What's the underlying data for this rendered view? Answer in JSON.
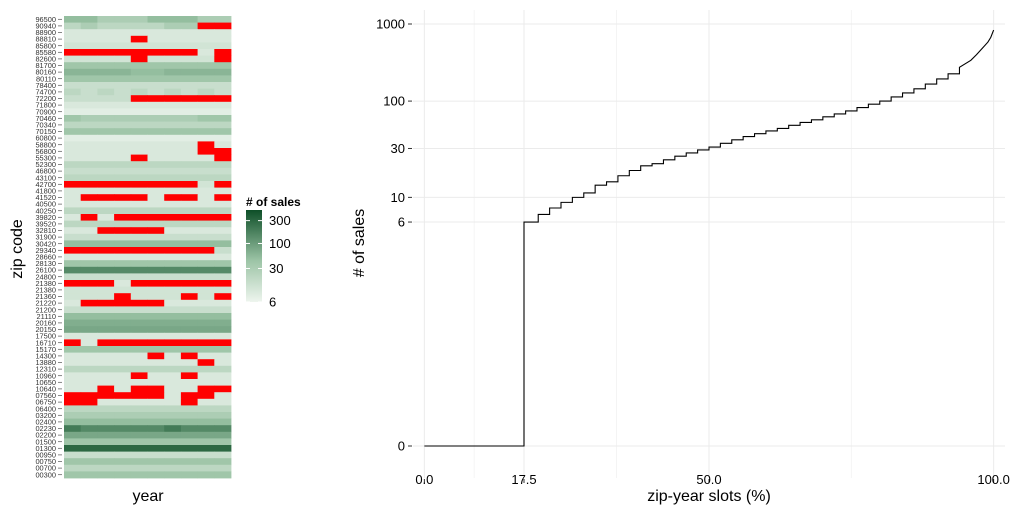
{
  "chart_data": [
    {
      "type": "heatmap",
      "xlabel": "year",
      "ylabel": "zip code",
      "columns": 10,
      "rows": [
        {
          "zip": "96500",
          "cells": [
            50,
            50,
            30,
            30,
            30,
            50,
            50,
            50,
            30,
            30
          ]
        },
        {
          "zip": "90940",
          "cells": [
            20,
            30,
            20,
            20,
            20,
            20,
            30,
            30,
            -1,
            -1
          ]
        },
        {
          "zip": "88900",
          "cells": [
            10,
            10,
            10,
            10,
            10,
            10,
            10,
            10,
            10,
            10
          ]
        },
        {
          "zip": "88810",
          "cells": [
            10,
            10,
            10,
            10,
            -1,
            10,
            10,
            10,
            10,
            10
          ]
        },
        {
          "zip": "85800",
          "cells": [
            12,
            12,
            12,
            12,
            12,
            12,
            12,
            12,
            12,
            12
          ]
        },
        {
          "zip": "85580",
          "cells": [
            -1,
            -1,
            -1,
            -1,
            -1,
            -1,
            -1,
            -1,
            10,
            -1
          ]
        },
        {
          "zip": "82600",
          "cells": [
            12,
            12,
            12,
            12,
            -1,
            12,
            12,
            12,
            12,
            -1
          ]
        },
        {
          "zip": "81700",
          "cells": [
            40,
            40,
            40,
            40,
            40,
            40,
            40,
            40,
            40,
            40
          ]
        },
        {
          "zip": "80160",
          "cells": [
            60,
            60,
            60,
            60,
            50,
            50,
            60,
            60,
            60,
            60
          ]
        },
        {
          "zip": "80110",
          "cells": [
            40,
            40,
            40,
            40,
            40,
            40,
            40,
            40,
            40,
            40
          ]
        },
        {
          "zip": "78400",
          "cells": [
            15,
            15,
            15,
            15,
            15,
            15,
            15,
            15,
            15,
            15
          ]
        },
        {
          "zip": "74700",
          "cells": [
            20,
            15,
            20,
            15,
            20,
            15,
            20,
            15,
            20,
            15
          ]
        },
        {
          "zip": "72200",
          "cells": [
            15,
            15,
            15,
            15,
            -1,
            -1,
            -1,
            -1,
            -1,
            -1
          ]
        },
        {
          "zip": "71800",
          "cells": [
            10,
            10,
            10,
            10,
            10,
            10,
            10,
            10,
            10,
            10
          ]
        },
        {
          "zip": "70900",
          "cells": [
            8,
            8,
            8,
            8,
            8,
            8,
            8,
            8,
            8,
            8
          ]
        },
        {
          "zip": "70460",
          "cells": [
            40,
            30,
            30,
            30,
            30,
            30,
            30,
            30,
            40,
            40
          ]
        },
        {
          "zip": "70340",
          "cells": [
            20,
            20,
            20,
            20,
            20,
            20,
            20,
            20,
            20,
            20
          ]
        },
        {
          "zip": "70150",
          "cells": [
            40,
            40,
            40,
            40,
            40,
            40,
            40,
            40,
            40,
            40
          ]
        },
        {
          "zip": "60800",
          "cells": [
            8,
            8,
            8,
            8,
            8,
            8,
            8,
            8,
            8,
            8
          ]
        },
        {
          "zip": "58800",
          "cells": [
            10,
            10,
            10,
            10,
            10,
            10,
            10,
            10,
            -1,
            10
          ]
        },
        {
          "zip": "56800",
          "cells": [
            10,
            10,
            10,
            10,
            10,
            10,
            10,
            10,
            -1,
            -1
          ]
        },
        {
          "zip": "55300",
          "cells": [
            10,
            10,
            10,
            10,
            -1,
            10,
            10,
            10,
            10,
            -1
          ]
        },
        {
          "zip": "52300",
          "cells": [
            20,
            20,
            20,
            20,
            20,
            20,
            20,
            20,
            20,
            20
          ]
        },
        {
          "zip": "46800",
          "cells": [
            15,
            15,
            15,
            15,
            15,
            15,
            15,
            15,
            15,
            15
          ]
        },
        {
          "zip": "43100",
          "cells": [
            20,
            20,
            20,
            20,
            20,
            20,
            20,
            20,
            20,
            20
          ]
        },
        {
          "zip": "42700",
          "cells": [
            -1,
            -1,
            -1,
            -1,
            -1,
            -1,
            -1,
            -1,
            12,
            -1
          ]
        },
        {
          "zip": "41800",
          "cells": [
            10,
            10,
            10,
            10,
            10,
            10,
            10,
            10,
            10,
            10
          ]
        },
        {
          "zip": "41520",
          "cells": [
            10,
            -1,
            -1,
            -1,
            -1,
            10,
            -1,
            -1,
            10,
            -1
          ]
        },
        {
          "zip": "40500",
          "cells": [
            10,
            10,
            10,
            10,
            10,
            10,
            10,
            10,
            10,
            10
          ]
        },
        {
          "zip": "40250",
          "cells": [
            20,
            20,
            20,
            20,
            20,
            20,
            20,
            20,
            20,
            20
          ]
        },
        {
          "zip": "39820",
          "cells": [
            10,
            -1,
            10,
            -1,
            -1,
            -1,
            -1,
            -1,
            -1,
            -1
          ]
        },
        {
          "zip": "39520",
          "cells": [
            20,
            20,
            20,
            20,
            20,
            20,
            20,
            20,
            20,
            20
          ]
        },
        {
          "zip": "32810",
          "cells": [
            10,
            10,
            -1,
            -1,
            -1,
            -1,
            10,
            10,
            10,
            10
          ]
        },
        {
          "zip": "31900",
          "cells": [
            15,
            15,
            15,
            15,
            15,
            15,
            15,
            15,
            15,
            15
          ]
        },
        {
          "zip": "30420",
          "cells": [
            50,
            50,
            50,
            50,
            50,
            50,
            50,
            50,
            50,
            50
          ]
        },
        {
          "zip": "29340",
          "cells": [
            -1,
            -1,
            -1,
            -1,
            -1,
            -1,
            -1,
            -1,
            -1,
            15
          ]
        },
        {
          "zip": "28660",
          "cells": [
            10,
            10,
            10,
            10,
            10,
            10,
            10,
            10,
            10,
            10
          ]
        },
        {
          "zip": "28130",
          "cells": [
            40,
            40,
            40,
            40,
            40,
            40,
            40,
            40,
            40,
            40
          ]
        },
        {
          "zip": "26100",
          "cells": [
            150,
            150,
            150,
            150,
            150,
            150,
            150,
            150,
            150,
            150
          ]
        },
        {
          "zip": "24800",
          "cells": [
            15,
            15,
            15,
            15,
            15,
            15,
            15,
            15,
            15,
            15
          ]
        },
        {
          "zip": "21380",
          "cells": [
            -1,
            -1,
            -1,
            10,
            -1,
            -1,
            -1,
            -1,
            -1,
            -1
          ]
        },
        {
          "zip": "21380",
          "cells": [
            12,
            12,
            12,
            12,
            12,
            12,
            12,
            12,
            12,
            12
          ]
        },
        {
          "zip": "21360",
          "cells": [
            12,
            12,
            12,
            -1,
            12,
            12,
            12,
            -1,
            12,
            -1
          ]
        },
        {
          "zip": "21220",
          "cells": [
            10,
            -1,
            -1,
            -1,
            -1,
            -1,
            10,
            10,
            10,
            10
          ]
        },
        {
          "zip": "21200",
          "cells": [
            15,
            15,
            15,
            15,
            15,
            15,
            15,
            15,
            15,
            15
          ]
        },
        {
          "zip": "21110",
          "cells": [
            50,
            50,
            50,
            50,
            50,
            50,
            50,
            50,
            50,
            50
          ]
        },
        {
          "zip": "20160",
          "cells": [
            70,
            70,
            70,
            70,
            70,
            70,
            70,
            70,
            70,
            70
          ]
        },
        {
          "zip": "20150",
          "cells": [
            80,
            80,
            80,
            80,
            80,
            80,
            80,
            80,
            80,
            80
          ]
        },
        {
          "zip": "17500",
          "cells": [
            10,
            10,
            10,
            10,
            10,
            10,
            10,
            10,
            10,
            10
          ]
        },
        {
          "zip": "16710",
          "cells": [
            -1,
            10,
            -1,
            -1,
            -1,
            -1,
            -1,
            -1,
            -1,
            -1
          ]
        },
        {
          "zip": "15170",
          "cells": [
            40,
            40,
            40,
            40,
            40,
            40,
            40,
            40,
            40,
            40
          ]
        },
        {
          "zip": "14300",
          "cells": [
            10,
            10,
            10,
            10,
            10,
            -1,
            10,
            -1,
            10,
            10
          ]
        },
        {
          "zip": "13880",
          "cells": [
            10,
            10,
            10,
            10,
            10,
            10,
            10,
            10,
            -1,
            10
          ]
        },
        {
          "zip": "12310",
          "cells": [
            20,
            20,
            20,
            20,
            20,
            20,
            20,
            20,
            20,
            20
          ]
        },
        {
          "zip": "10960",
          "cells": [
            10,
            10,
            10,
            10,
            -1,
            10,
            10,
            -1,
            10,
            10
          ]
        },
        {
          "zip": "10650",
          "cells": [
            10,
            10,
            10,
            10,
            10,
            10,
            10,
            10,
            10,
            10
          ]
        },
        {
          "zip": "10640",
          "cells": [
            10,
            10,
            -1,
            10,
            -1,
            -1,
            10,
            10,
            -1,
            -1
          ]
        },
        {
          "zip": "07560",
          "cells": [
            -1,
            -1,
            -1,
            -1,
            -1,
            -1,
            10,
            -1,
            -1,
            10
          ]
        },
        {
          "zip": "06750",
          "cells": [
            -1,
            -1,
            10,
            10,
            10,
            10,
            10,
            -1,
            10,
            10
          ]
        },
        {
          "zip": "06400",
          "cells": [
            20,
            20,
            20,
            20,
            20,
            20,
            20,
            20,
            20,
            20
          ]
        },
        {
          "zip": "03200",
          "cells": [
            30,
            30,
            30,
            30,
            30,
            30,
            30,
            30,
            30,
            30
          ]
        },
        {
          "zip": "02400",
          "cells": [
            50,
            50,
            50,
            50,
            50,
            50,
            50,
            50,
            50,
            50
          ]
        },
        {
          "zip": "02230",
          "cells": [
            200,
            150,
            150,
            150,
            150,
            150,
            200,
            150,
            150,
            150
          ]
        },
        {
          "zip": "02200",
          "cells": [
            80,
            80,
            80,
            80,
            80,
            80,
            80,
            80,
            80,
            80
          ]
        },
        {
          "zip": "01500",
          "cells": [
            40,
            40,
            40,
            40,
            40,
            40,
            40,
            40,
            40,
            40
          ]
        },
        {
          "zip": "01300",
          "cells": [
            300,
            300,
            300,
            300,
            300,
            300,
            300,
            300,
            300,
            300
          ]
        },
        {
          "zip": "00950",
          "cells": [
            15,
            15,
            15,
            15,
            15,
            15,
            15,
            15,
            15,
            15
          ]
        },
        {
          "zip": "00750",
          "cells": [
            40,
            40,
            40,
            40,
            40,
            40,
            40,
            40,
            40,
            40
          ]
        },
        {
          "zip": "00700",
          "cells": [
            20,
            20,
            20,
            20,
            20,
            20,
            20,
            20,
            20,
            20
          ]
        },
        {
          "zip": "00300",
          "cells": [
            40,
            40,
            40,
            40,
            40,
            40,
            40,
            40,
            40,
            40
          ]
        }
      ],
      "legend": {
        "title": "# of sales",
        "ticks": [
          "300",
          "100",
          "30",
          "6"
        ],
        "tick_values": [
          300,
          100,
          30,
          6
        ],
        "range": [
          6,
          500
        ],
        "low_color": "#eef5ee",
        "high_color": "#0e4f28",
        "missing_color": "#ff0000"
      }
    },
    {
      "type": "line",
      "xlabel": "zip-year slots (%)",
      "ylabel": "# of sales",
      "x_ticks": [
        "0.0",
        "17.5",
        "50.0",
        "100.0"
      ],
      "x_tick_values": [
        0,
        17.5,
        50,
        100
      ],
      "x_minor": [
        8.75,
        33.75,
        75
      ],
      "y_ticks": [
        "0",
        "6",
        "10",
        "30",
        "100",
        "1000"
      ],
      "y_tick_values": [
        0,
        6,
        10,
        30,
        100,
        1000
      ],
      "xlim": [
        -2,
        102
      ],
      "y_scale": "sqrt-of-log-like",
      "grid": true,
      "line_color": "#000000",
      "series": [
        {
          "x": [
            0,
            17.5,
            17.5,
            20,
            22,
            24,
            26,
            28,
            30,
            32,
            34,
            36,
            38,
            40,
            42,
            44,
            46,
            48,
            50,
            52,
            54,
            56,
            58,
            60,
            62,
            64,
            66,
            68,
            70,
            72,
            74,
            76,
            78,
            80,
            82,
            84,
            86,
            88,
            90,
            92,
            94,
            96,
            97,
            98,
            99,
            99.5,
            100
          ],
          "y": [
            0,
            0,
            6,
            7,
            8,
            9,
            10,
            11,
            13,
            14,
            16,
            18,
            20,
            21,
            23,
            25,
            27,
            29,
            31,
            34,
            37,
            40,
            43,
            46,
            49,
            53,
            57,
            61,
            66,
            71,
            77,
            84,
            92,
            100,
            112,
            125,
            140,
            160,
            185,
            215,
            260,
            320,
            380,
            460,
            560,
            650,
            820
          ]
        }
      ]
    }
  ]
}
